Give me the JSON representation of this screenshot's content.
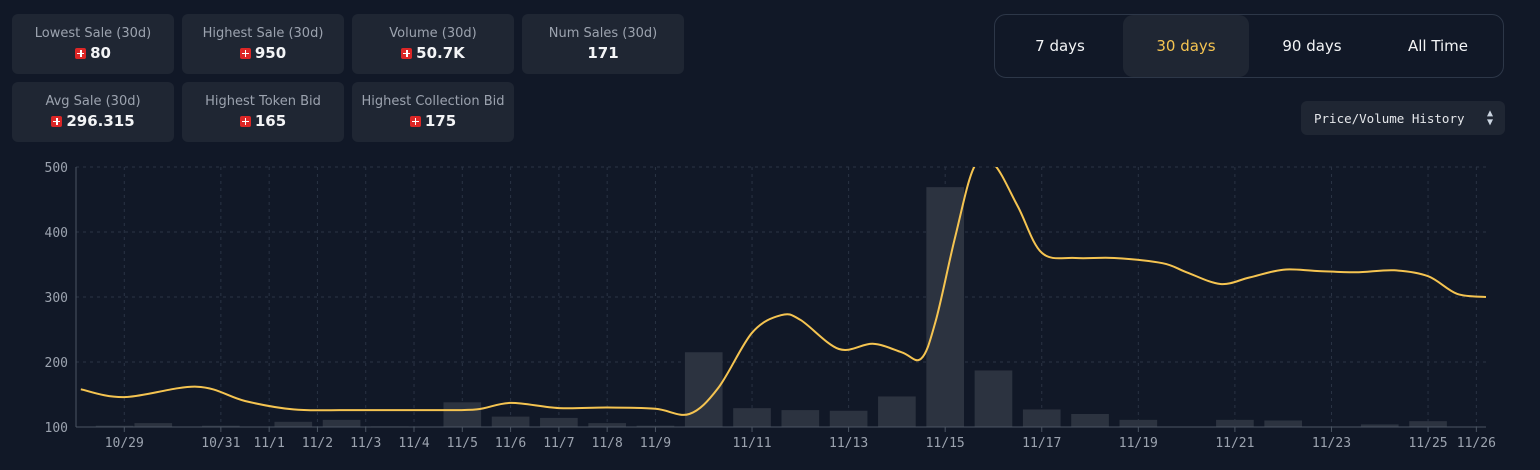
{
  "stats": [
    {
      "label": "Lowest Sale (30d)",
      "value": "80",
      "coin": true
    },
    {
      "label": "Highest Sale (30d)",
      "value": "950",
      "coin": true
    },
    {
      "label": "Volume (30d)",
      "value": "50.7K",
      "coin": true
    },
    {
      "label": "Num Sales (30d)",
      "value": "171",
      "coin": false
    },
    {
      "label": "Avg Sale (30d)",
      "value": "296.315",
      "coin": true
    },
    {
      "label": "Highest Token Bid",
      "value": "165",
      "coin": true
    },
    {
      "label": "Highest Collection Bid",
      "value": "175",
      "coin": true
    }
  ],
  "range": {
    "options": [
      "7 days",
      "30 days",
      "90 days",
      "All Time"
    ],
    "active": "30 days"
  },
  "view_select": {
    "value": "Price/Volume History"
  },
  "colors": {
    "accent": "#f5c451",
    "bar": "#2c3340",
    "background": "#111827"
  },
  "chart_data": {
    "type": "line",
    "ylim": [
      100,
      500
    ],
    "yticks": [
      100,
      200,
      300,
      400,
      500
    ],
    "xlim": [
      28.0,
      57.2
    ],
    "xticks": [
      {
        "label": "10/29",
        "x": 29
      },
      {
        "label": "10/31",
        "x": 31
      },
      {
        "label": "11/1",
        "x": 32
      },
      {
        "label": "11/2",
        "x": 33
      },
      {
        "label": "11/3",
        "x": 34
      },
      {
        "label": "11/4",
        "x": 35
      },
      {
        "label": "11/5",
        "x": 36
      },
      {
        "label": "11/6",
        "x": 37
      },
      {
        "label": "11/7",
        "x": 38
      },
      {
        "label": "11/8",
        "x": 39
      },
      {
        "label": "11/9",
        "x": 40
      },
      {
        "label": "11/11",
        "x": 42
      },
      {
        "label": "11/13",
        "x": 44
      },
      {
        "label": "11/15",
        "x": 46
      },
      {
        "label": "11/17",
        "x": 48
      },
      {
        "label": "11/19",
        "x": 50
      },
      {
        "label": "11/21",
        "x": 52
      },
      {
        "label": "11/23",
        "x": 54
      },
      {
        "label": "11/25",
        "x": 56
      },
      {
        "label": "11/26",
        "x": 57
      }
    ],
    "grid": true,
    "series": [
      {
        "type": "line",
        "color": "#f5c451",
        "points": [
          [
            28.1,
            158
          ],
          [
            29,
            146
          ],
          [
            30.5,
            162
          ],
          [
            31.5,
            140
          ],
          [
            32.5,
            127
          ],
          [
            33.5,
            126
          ],
          [
            34.5,
            126
          ],
          [
            35.5,
            126
          ],
          [
            36.3,
            127
          ],
          [
            37,
            137
          ],
          [
            38,
            129
          ],
          [
            39,
            130
          ],
          [
            40,
            128
          ],
          [
            40.7,
            120
          ],
          [
            41.3,
            160
          ],
          [
            42,
            245
          ],
          [
            42.6,
            272
          ],
          [
            43,
            265
          ],
          [
            43.8,
            220
          ],
          [
            44.5,
            228
          ],
          [
            45.1,
            215
          ],
          [
            45.5,
            205
          ],
          [
            45.8,
            262
          ],
          [
            46.2,
            390
          ],
          [
            46.6,
            500
          ],
          [
            47,
            505
          ],
          [
            47.5,
            440
          ],
          [
            48,
            368
          ],
          [
            48.7,
            360
          ],
          [
            49.5,
            360
          ],
          [
            50.5,
            352
          ],
          [
            51,
            338
          ],
          [
            51.7,
            320
          ],
          [
            52.3,
            330
          ],
          [
            53,
            342
          ],
          [
            53.7,
            340
          ],
          [
            54.5,
            338
          ],
          [
            55.3,
            341
          ],
          [
            56,
            332
          ],
          [
            56.6,
            305
          ],
          [
            57.2,
            300
          ]
        ]
      },
      {
        "type": "bar",
        "color": "#2c3340",
        "points": [
          [
            28.8,
            102
          ],
          [
            29.6,
            106
          ],
          [
            31.0,
            102
          ],
          [
            32.5,
            108
          ],
          [
            33.5,
            111
          ],
          [
            34.5,
            101
          ],
          [
            36.0,
            138
          ],
          [
            37.0,
            116
          ],
          [
            38.0,
            114
          ],
          [
            39.0,
            106
          ],
          [
            40.0,
            102
          ],
          [
            41.0,
            215
          ],
          [
            42.0,
            129
          ],
          [
            43.0,
            126
          ],
          [
            44.0,
            125
          ],
          [
            45.0,
            147
          ],
          [
            46.0,
            469
          ],
          [
            47.0,
            187
          ],
          [
            48.0,
            127
          ],
          [
            49.0,
            120
          ],
          [
            50.0,
            111
          ],
          [
            52.0,
            111
          ],
          [
            53.0,
            110
          ],
          [
            55.0,
            104
          ],
          [
            56.0,
            109
          ]
        ]
      }
    ]
  }
}
